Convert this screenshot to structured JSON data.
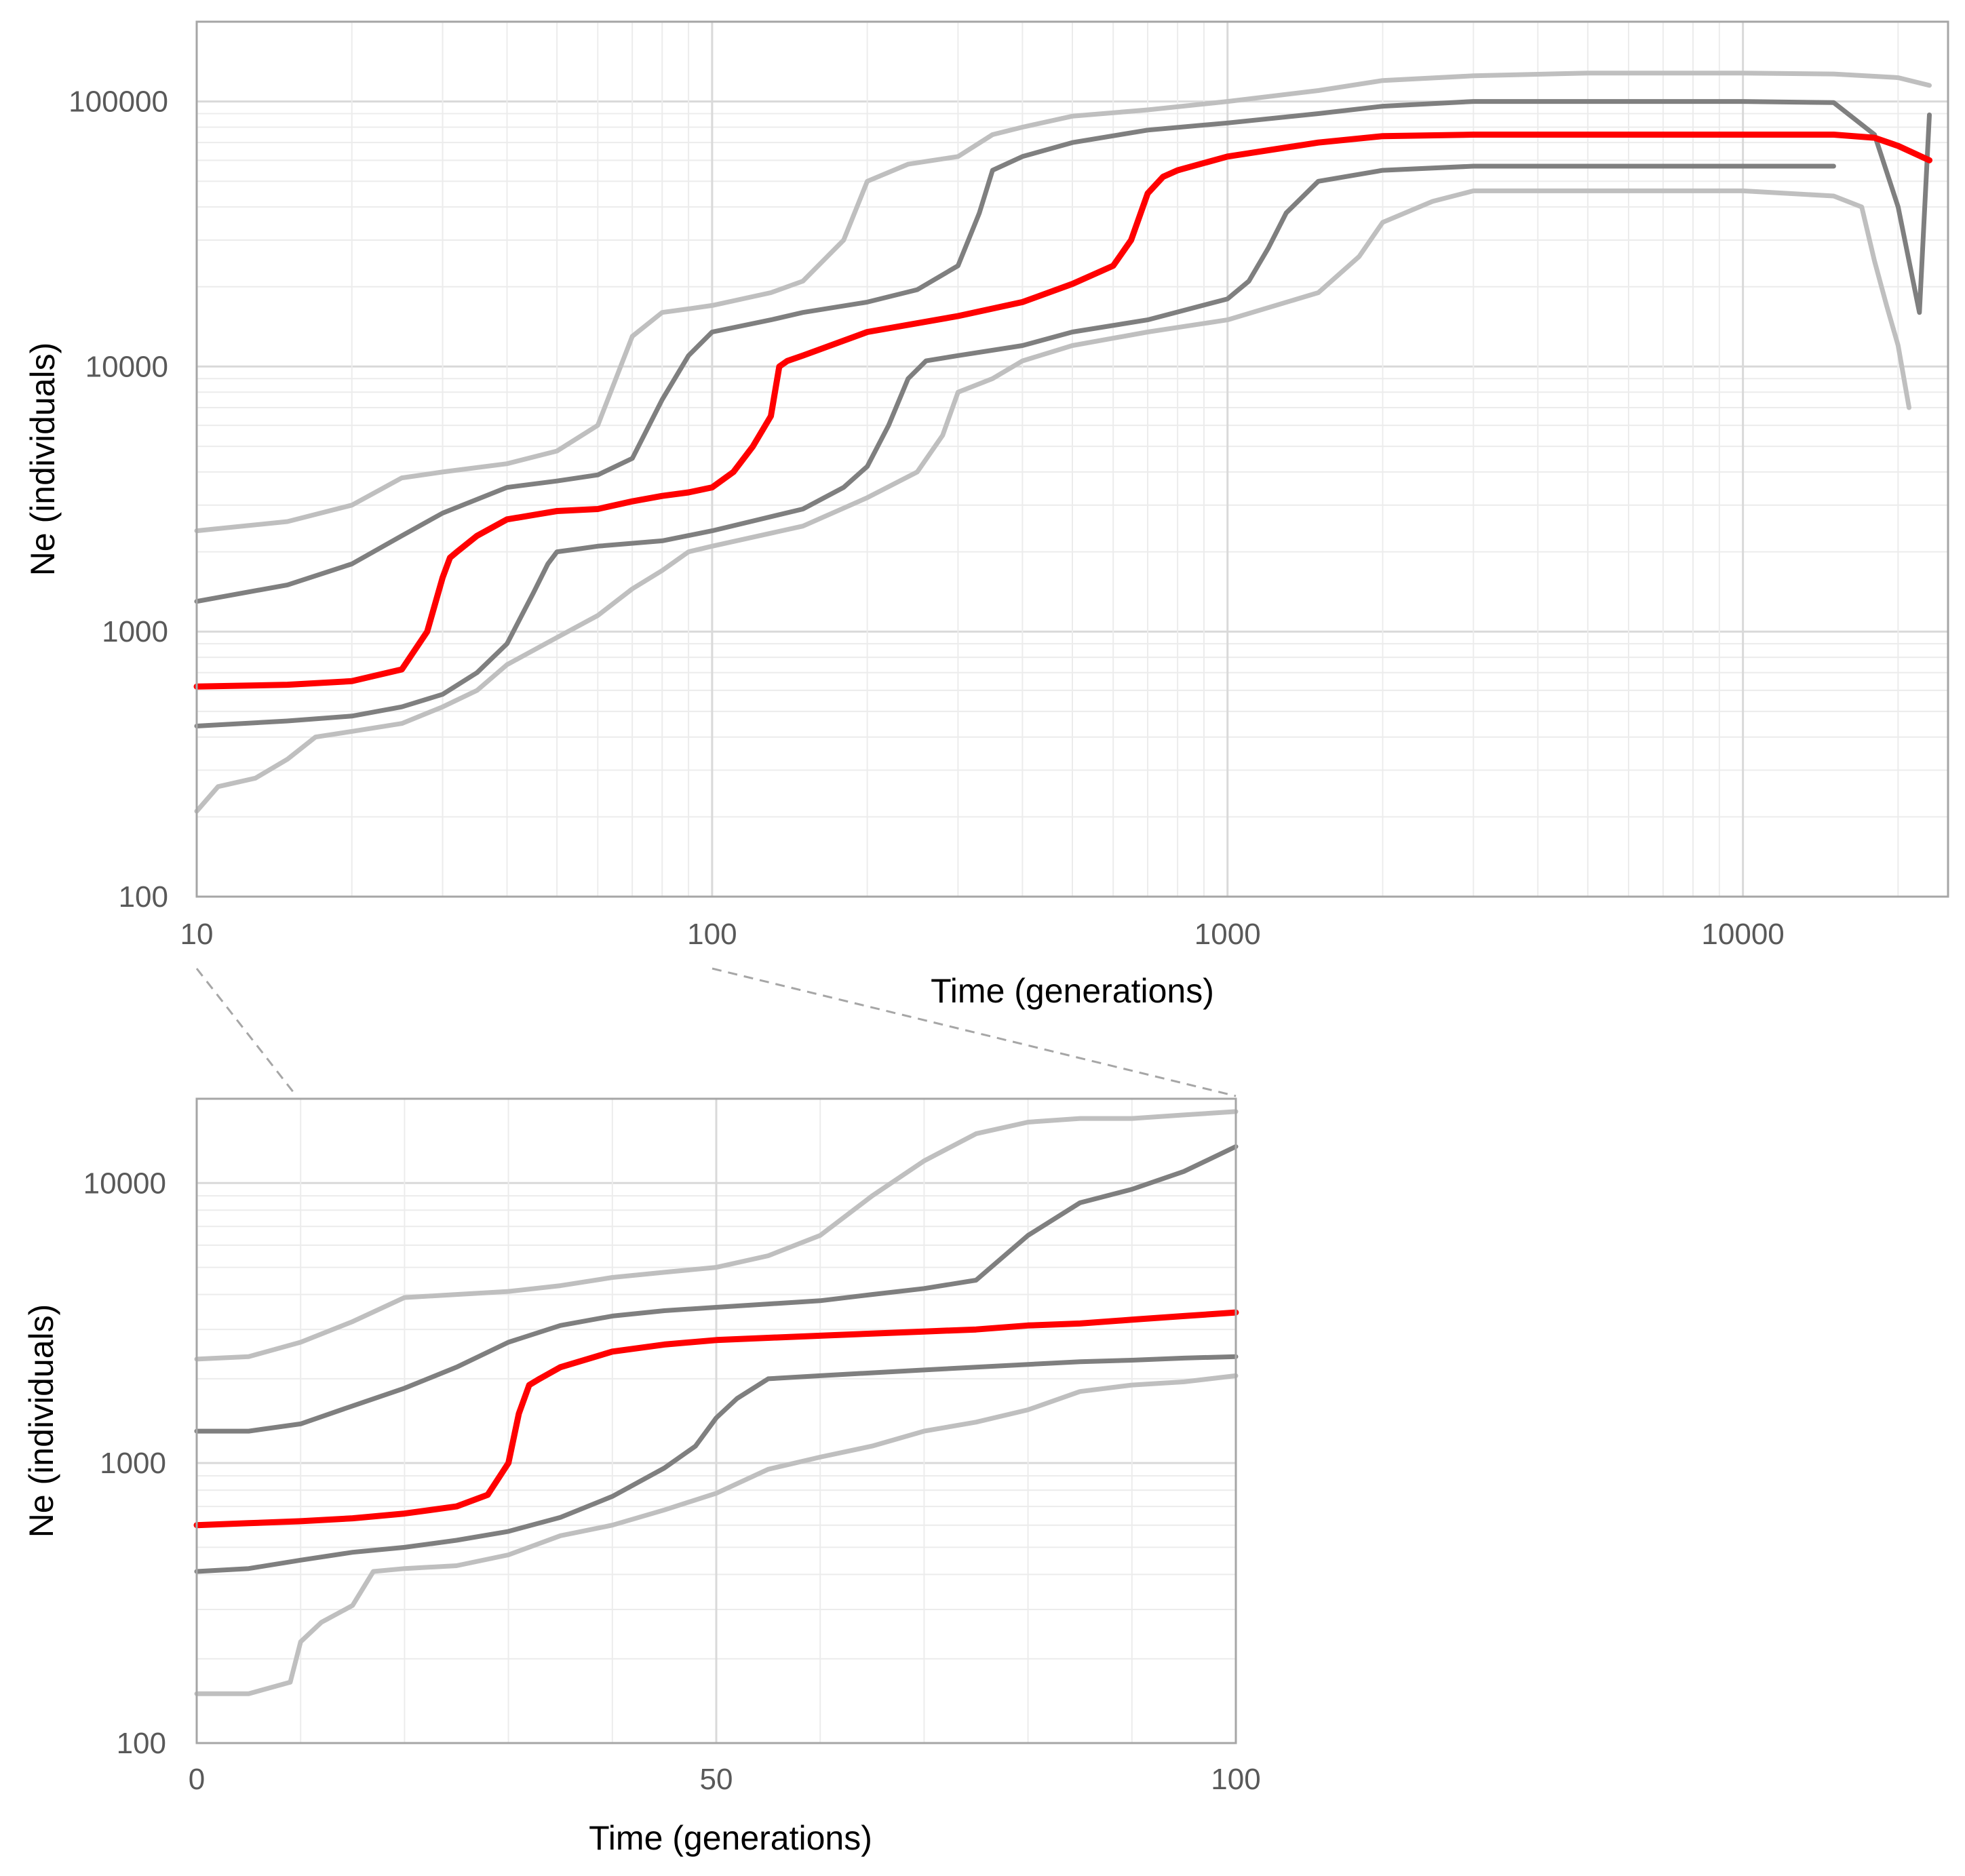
{
  "chart_data": [
    {
      "type": "line",
      "panel": "top",
      "title": "",
      "xlabel": "Time (generations)",
      "ylabel": "Ne (individuals)",
      "xscale": "log",
      "yscale": "log",
      "xlim": [
        10,
        25000
      ],
      "ylim": [
        100,
        200000
      ],
      "xticks": [
        10,
        100,
        1000,
        10000
      ],
      "xtick_labels": [
        "10",
        "100",
        "1000",
        "10000"
      ],
      "yticks": [
        100,
        1000,
        10000,
        100000
      ],
      "ytick_labels": [
        "100",
        "1000",
        "10000",
        "100000"
      ],
      "grid": true,
      "legend": "none",
      "series": [
        {
          "name": "upper bound (outer)",
          "color": "#bfbfbf",
          "x": [
            10,
            15,
            20,
            25,
            30,
            40,
            50,
            60,
            70,
            80,
            90,
            100,
            130,
            150,
            180,
            200,
            240,
            300,
            350,
            400,
            500,
            700,
            1000,
            1500,
            2000,
            3000,
            5000,
            10000,
            15000,
            20000,
            23000
          ],
          "y": [
            2400,
            2600,
            3000,
            3800,
            4000,
            4300,
            4800,
            6000,
            13000,
            16000,
            16500,
            17000,
            19000,
            21000,
            30000,
            50000,
            58000,
            62000,
            75000,
            80000,
            88000,
            93000,
            100000,
            110000,
            120000,
            125000,
            128000,
            128000,
            127000,
            123000,
            115000
          ]
        },
        {
          "name": "upper bound (inner)",
          "color": "#7f7f7f",
          "x": [
            10,
            15,
            20,
            25,
            30,
            40,
            50,
            60,
            70,
            80,
            90,
            100,
            130,
            150,
            200,
            250,
            300,
            330,
            350,
            400,
            500,
            700,
            1000,
            1500,
            2000,
            3000,
            5000,
            10000,
            15000,
            18000,
            20000,
            21000,
            22000,
            23000
          ],
          "y": [
            1300,
            1500,
            1800,
            2300,
            2800,
            3500,
            3700,
            3900,
            4500,
            7500,
            11000,
            13500,
            15000,
            16000,
            17500,
            19500,
            24000,
            38000,
            55000,
            62000,
            70000,
            78000,
            83000,
            90000,
            96000,
            100000,
            100000,
            100000,
            99000,
            75000,
            40000,
            25000,
            16000,
            89000
          ]
        },
        {
          "name": "median",
          "color": "#ff0000",
          "x": [
            10,
            15,
            20,
            25,
            28,
            30,
            31,
            32,
            35,
            40,
            50,
            60,
            70,
            80,
            90,
            100,
            110,
            120,
            130,
            135,
            140,
            150,
            200,
            300,
            400,
            500,
            600,
            650,
            700,
            750,
            800,
            1000,
            1500,
            2000,
            3000,
            5000,
            10000,
            15000,
            18000,
            20000,
            23000
          ],
          "y": [
            620,
            630,
            650,
            720,
            1000,
            1600,
            1900,
            2000,
            2300,
            2650,
            2850,
            2900,
            3100,
            3250,
            3350,
            3500,
            4000,
            5000,
            6500,
            10000,
            10500,
            11000,
            13500,
            15500,
            17500,
            20500,
            24000,
            30000,
            45000,
            52000,
            55000,
            62000,
            70000,
            74000,
            75000,
            75000,
            75000,
            75000,
            73000,
            68000,
            60000
          ]
        },
        {
          "name": "lower bound (inner)",
          "color": "#7f7f7f",
          "x": [
            10,
            15,
            20,
            25,
            30,
            35,
            40,
            45,
            48,
            50,
            55,
            60,
            80,
            100,
            150,
            180,
            200,
            220,
            240,
            260,
            300,
            400,
            500,
            700,
            1000,
            1100,
            1200,
            1300,
            1500,
            2000,
            3000,
            5000,
            10000,
            14000,
            15000
          ],
          "y": [
            440,
            460,
            480,
            520,
            580,
            700,
            900,
            1400,
            1800,
            2000,
            2050,
            2100,
            2200,
            2400,
            2900,
            3500,
            4200,
            6000,
            9000,
            10500,
            11000,
            12000,
            13500,
            15000,
            18000,
            21000,
            28000,
            38000,
            50000,
            55000,
            57000,
            57000,
            57000,
            57000,
            57000
          ]
        },
        {
          "name": "lower bound (outer)",
          "color": "#bfbfbf",
          "x": [
            10,
            11,
            13,
            15,
            17,
            20,
            25,
            30,
            35,
            40,
            50,
            60,
            70,
            80,
            90,
            100,
            150,
            200,
            250,
            280,
            300,
            350,
            400,
            500,
            700,
            1000,
            1500,
            1800,
            2000,
            2500,
            3000,
            5000,
            10000,
            15000,
            17000,
            18000,
            19000,
            20000,
            21000
          ],
          "y": [
            210,
            260,
            280,
            330,
            400,
            420,
            450,
            520,
            600,
            750,
            950,
            1150,
            1450,
            1700,
            2000,
            2100,
            2500,
            3200,
            4000,
            5500,
            8000,
            9000,
            10500,
            12000,
            13500,
            15000,
            19000,
            26000,
            35000,
            42000,
            46000,
            46000,
            46000,
            44000,
            40000,
            25000,
            17000,
            12000,
            7000
          ]
        }
      ]
    },
    {
      "type": "line",
      "panel": "bottom",
      "title": "",
      "xlabel": "Time (generations)",
      "ylabel": "Ne (individuals)",
      "xscale": "linear",
      "yscale": "log",
      "xlim": [
        0,
        100
      ],
      "ylim": [
        100,
        20000
      ],
      "xticks": [
        0,
        50,
        100
      ],
      "xtick_labels": [
        "0",
        "50",
        "100"
      ],
      "yticks": [
        100,
        1000,
        10000
      ],
      "ytick_labels": [
        "100",
        "1000",
        "10000"
      ],
      "grid": true,
      "legend": "none",
      "series": [
        {
          "name": "upper bound (outer)",
          "color": "#bfbfbf",
          "x": [
            0,
            5,
            10,
            15,
            20,
            25,
            30,
            35,
            40,
            45,
            50,
            55,
            60,
            65,
            70,
            75,
            80,
            85,
            90,
            95,
            100
          ],
          "y": [
            2350,
            2400,
            2700,
            3200,
            3900,
            4000,
            4100,
            4300,
            4600,
            4800,
            5000,
            5500,
            6500,
            9000,
            12000,
            15000,
            16500,
            17000,
            17000,
            17500,
            18000
          ]
        },
        {
          "name": "upper bound (inner)",
          "color": "#7f7f7f",
          "x": [
            0,
            5,
            10,
            15,
            20,
            25,
            30,
            35,
            40,
            45,
            50,
            55,
            60,
            65,
            70,
            75,
            80,
            85,
            90,
            95,
            100
          ],
          "y": [
            1300,
            1300,
            1380,
            1600,
            1850,
            2200,
            2700,
            3100,
            3350,
            3500,
            3600,
            3700,
            3800,
            4000,
            4200,
            4500,
            6500,
            8500,
            9500,
            11000,
            13500
          ]
        },
        {
          "name": "median",
          "color": "#ff0000",
          "x": [
            0,
            5,
            10,
            15,
            20,
            25,
            28,
            30,
            31,
            32,
            33,
            35,
            40,
            45,
            50,
            55,
            60,
            65,
            70,
            75,
            80,
            85,
            90,
            95,
            100
          ],
          "y": [
            600,
            610,
            620,
            635,
            660,
            700,
            770,
            1000,
            1500,
            1900,
            2000,
            2200,
            2500,
            2650,
            2750,
            2800,
            2850,
            2900,
            2950,
            3000,
            3100,
            3150,
            3250,
            3350,
            3450
          ]
        },
        {
          "name": "lower bound (inner)",
          "color": "#7f7f7f",
          "x": [
            0,
            5,
            10,
            15,
            20,
            25,
            30,
            35,
            40,
            45,
            48,
            50,
            52,
            55,
            60,
            65,
            70,
            75,
            80,
            85,
            90,
            95,
            100
          ],
          "y": [
            410,
            420,
            450,
            480,
            500,
            530,
            570,
            640,
            760,
            960,
            1150,
            1450,
            1700,
            2000,
            2050,
            2100,
            2150,
            2200,
            2250,
            2300,
            2330,
            2370,
            2400
          ]
        },
        {
          "name": "lower bound (outer)",
          "color": "#bfbfbf",
          "x": [
            0,
            5,
            9,
            10,
            12,
            15,
            17,
            20,
            25,
            30,
            35,
            40,
            45,
            50,
            55,
            60,
            65,
            70,
            75,
            80,
            85,
            90,
            95,
            100
          ],
          "y": [
            150,
            150,
            165,
            230,
            270,
            310,
            410,
            420,
            430,
            470,
            550,
            600,
            680,
            780,
            950,
            1050,
            1150,
            1300,
            1400,
            1550,
            1800,
            1900,
            1950,
            2050
          ]
        }
      ]
    }
  ]
}
